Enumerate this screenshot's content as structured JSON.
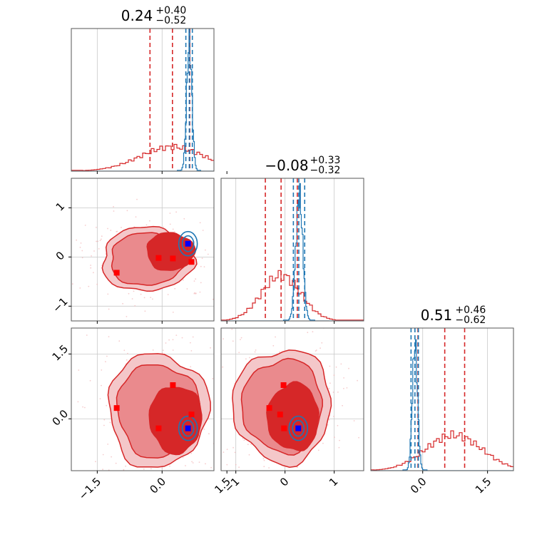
{
  "chart_data": {
    "type": "corner",
    "parameters": [
      {
        "index": 0,
        "title_value": "0.24",
        "title_plus": "+0.40",
        "title_minus": "−0.52",
        "range": [
          -2.1,
          1.2
        ],
        "ticks": [
          {
            "value": -1.5,
            "label": "−1.5"
          },
          {
            "value": 0.0,
            "label": "0.0"
          },
          {
            "value": 1.5,
            "label": "1.5"
          }
        ],
        "red_quantiles": [
          -0.28,
          0.24,
          0.64
        ],
        "blue_quantiles": [
          0.55,
          0.63,
          0.7
        ]
      },
      {
        "index": 1,
        "title_value": "−0.08",
        "title_plus": "+0.33",
        "title_minus": "−0.32",
        "range": [
          -1.3,
          1.6
        ],
        "ticks": [
          {
            "value": -1,
            "label": "−1"
          },
          {
            "value": 0,
            "label": "0"
          },
          {
            "value": 1,
            "label": "1"
          }
        ],
        "red_quantiles": [
          -0.4,
          -0.08,
          0.25
        ],
        "blue_quantiles": [
          0.17,
          0.28,
          0.4
        ]
      },
      {
        "index": 2,
        "title_value": "0.51",
        "title_plus": "+0.46",
        "title_minus": "−0.62",
        "range": [
          -1.2,
          2.1
        ],
        "ticks": [
          {
            "value": 0.0,
            "label": "0.0"
          },
          {
            "value": 1.5,
            "label": "1.5"
          }
        ],
        "red_quantiles": [
          -0.11,
          0.51,
          0.97
        ],
        "blue_quantiles": [
          -0.27,
          -0.18,
          -0.1
        ]
      }
    ],
    "histograms": {
      "red": [
        {
          "param": 0,
          "center": 0.24,
          "width": 0.75,
          "height": 0.17
        },
        {
          "param": 1,
          "center": -0.08,
          "width": 0.4,
          "height": 0.32
        },
        {
          "param": 2,
          "center": 0.72,
          "width": 0.65,
          "height": 0.25
        }
      ],
      "blue": [
        {
          "param": 0,
          "center": 0.63,
          "width": 0.06,
          "height": 0.9
        },
        {
          "param": 1,
          "center": 0.29,
          "width": 0.07,
          "height": 0.88
        },
        {
          "param": 2,
          "center": -0.18,
          "width": 0.06,
          "height": 0.88
        }
      ]
    },
    "markers": {
      "red": [
        {
          "p0": -1.05,
          "p1": -0.32,
          "p2": 0.25
        },
        {
          "p0": -0.08,
          "p1": -0.02,
          "p2": -0.22
        },
        {
          "p0": 0.25,
          "p1": -0.03,
          "p2": 0.78
        },
        {
          "p0": 0.68,
          "p1": -0.1,
          "p2": 0.1
        }
      ],
      "blue": [
        {
          "p0": 0.6,
          "p1": 0.27,
          "p2": -0.22
        }
      ]
    },
    "colors": {
      "red": "#d62728",
      "red_light": "#f4c7c9",
      "red_mid": "#ea8a8d",
      "blue": "#1f77b4",
      "marker_blue": "#0000ff",
      "marker_red": "#ff0000"
    },
    "grid": true,
    "legend": "none"
  }
}
